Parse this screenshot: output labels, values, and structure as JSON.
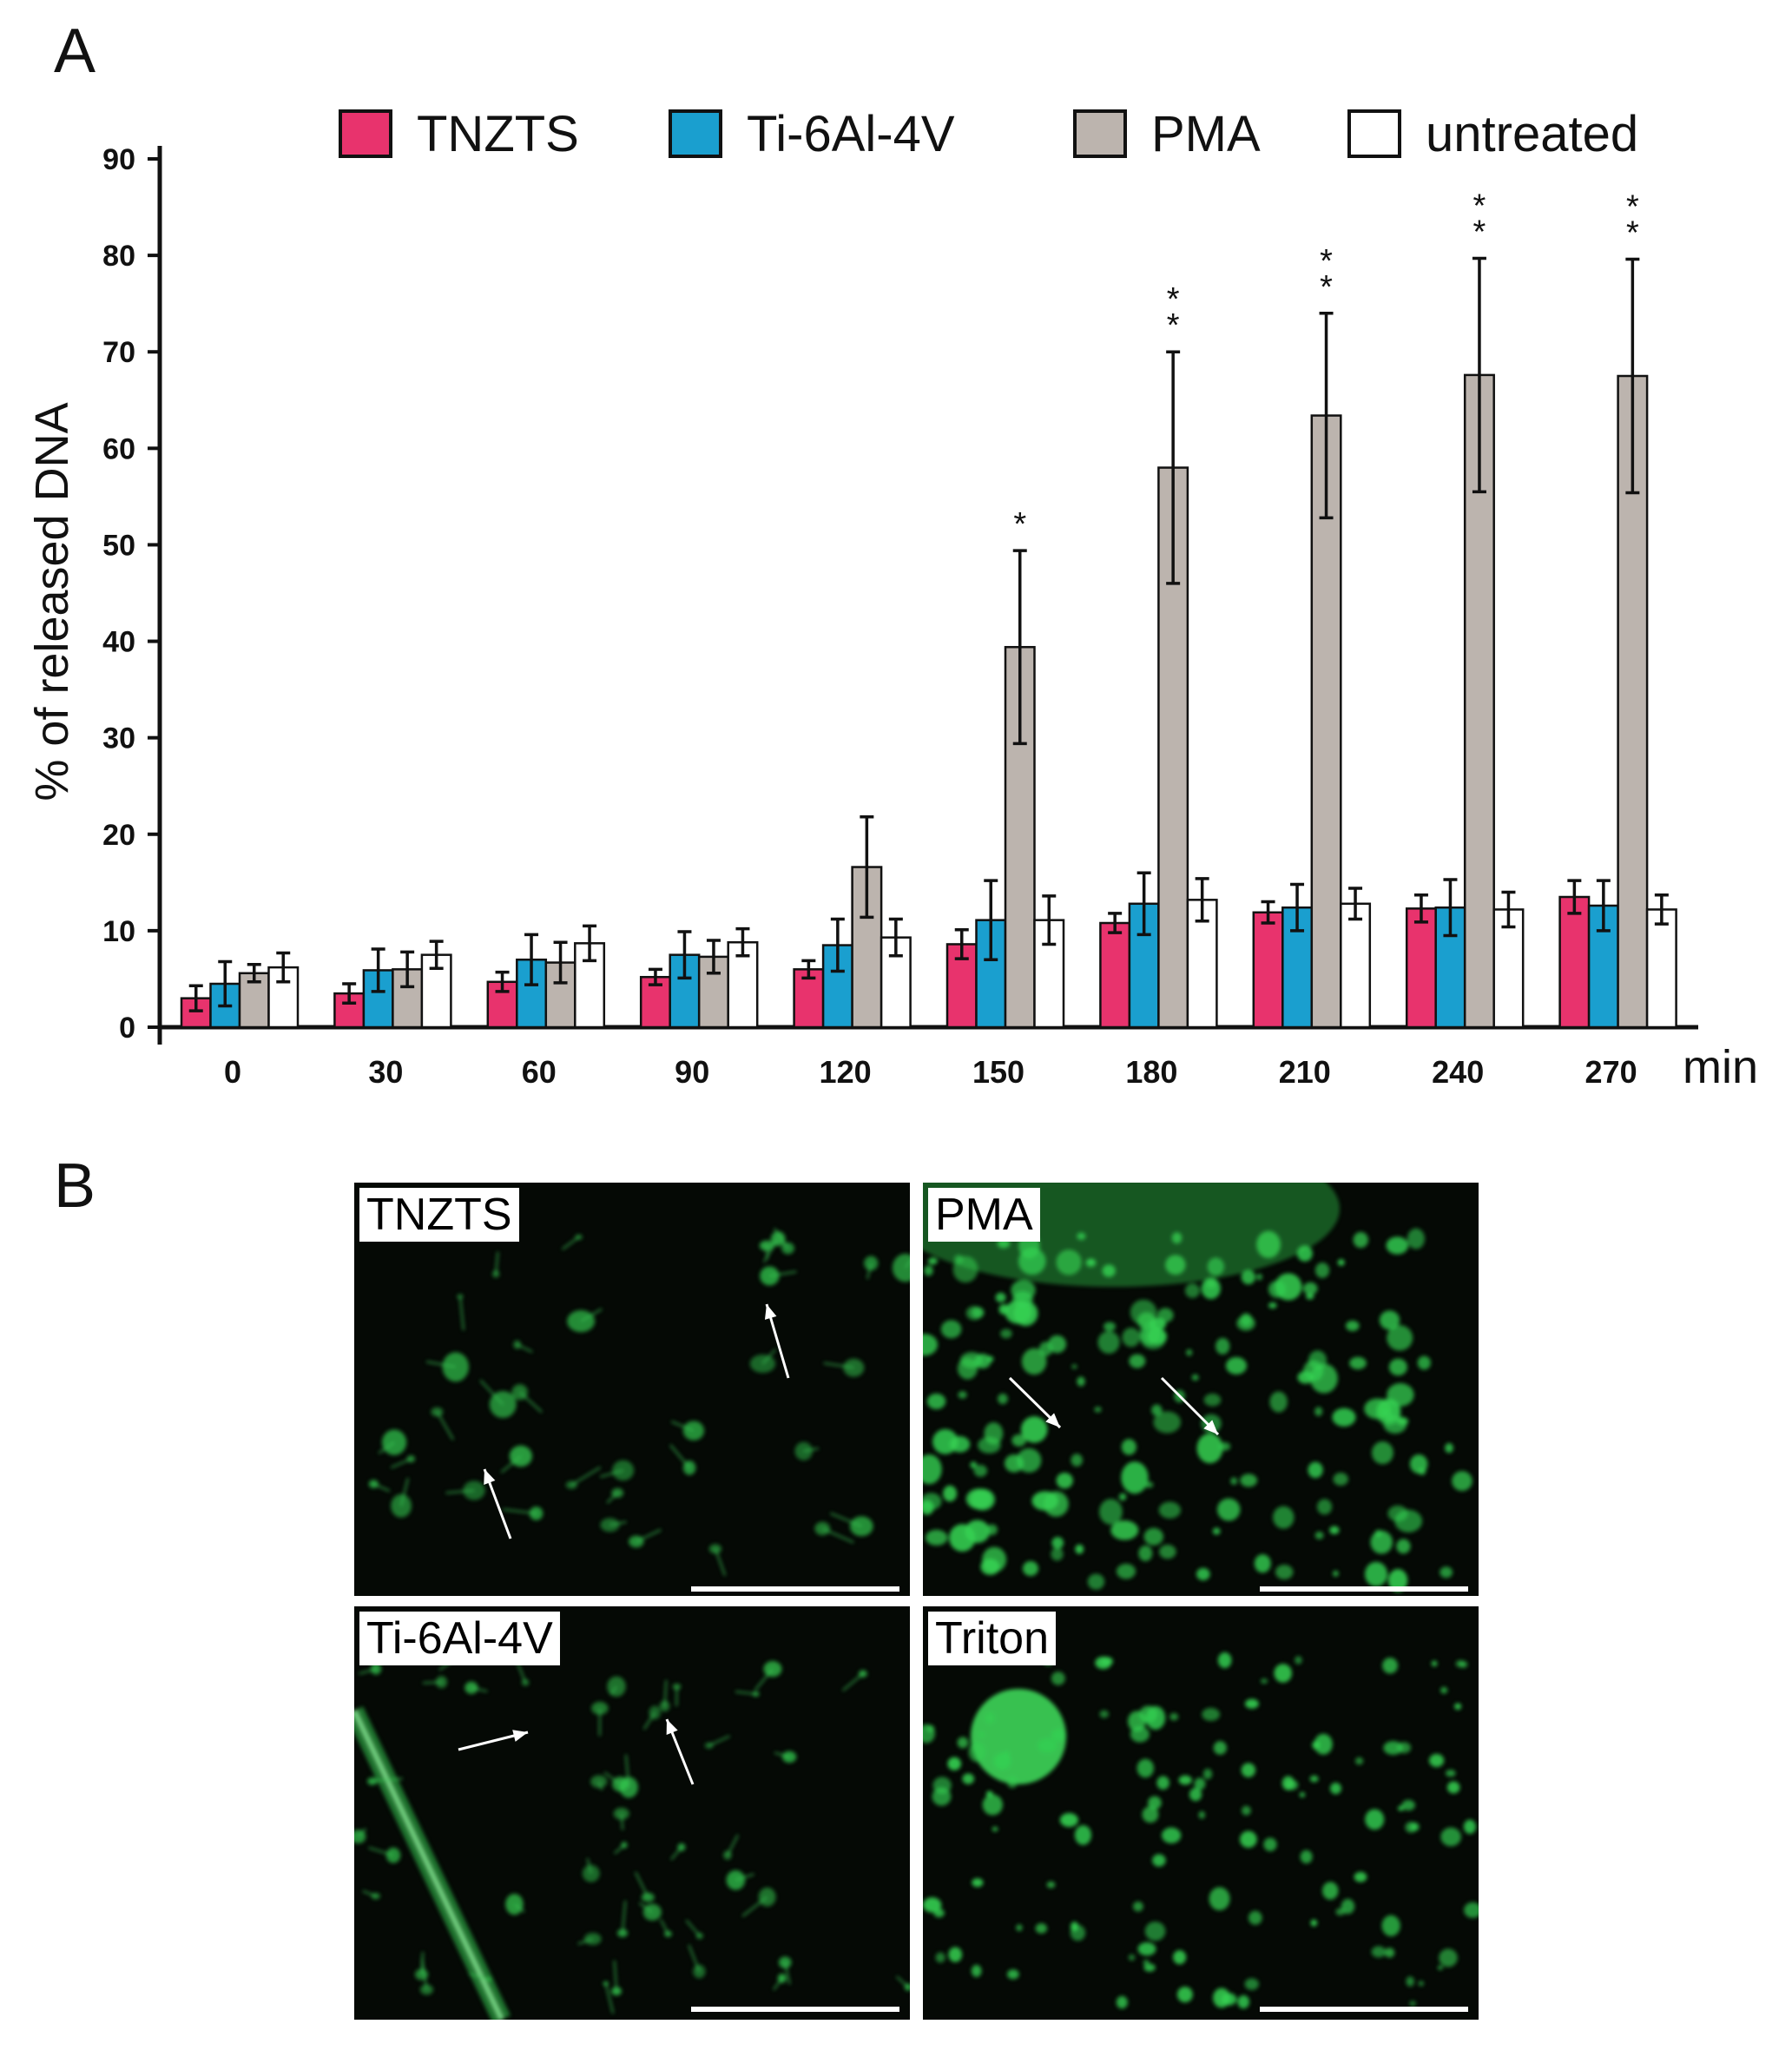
{
  "panels": {
    "a_label": "A",
    "b_label": "B"
  },
  "colors": {
    "TNZTS": "#e8336d",
    "Ti-6Al-4V": "#1a9fcf",
    "PMA": "#bcb4ae",
    "untreated": "#ffffff"
  },
  "chart_data": {
    "type": "bar",
    "title": "",
    "xlabel": "",
    "x_unit": "min",
    "ylabel": "% of released DNA",
    "ylim": [
      0,
      90
    ],
    "yticks": [
      0,
      10,
      20,
      30,
      40,
      50,
      60,
      70,
      80,
      90
    ],
    "legend_position": "top",
    "categories": [
      "0",
      "30",
      "60",
      "90",
      "120",
      "150",
      "180",
      "210",
      "240",
      "270"
    ],
    "series": [
      {
        "name": "TNZTS",
        "values": [
          3.0,
          3.5,
          4.7,
          5.2,
          6.0,
          8.6,
          10.8,
          11.9,
          12.3,
          13.5
        ],
        "errors": [
          1.3,
          1.0,
          1.0,
          0.8,
          0.9,
          1.5,
          1.0,
          1.1,
          1.4,
          1.7
        ]
      },
      {
        "name": "Ti-6Al-4V",
        "values": [
          4.5,
          5.9,
          7.0,
          7.5,
          8.5,
          11.1,
          12.8,
          12.4,
          12.4,
          12.6
        ],
        "errors": [
          2.3,
          2.2,
          2.6,
          2.4,
          2.7,
          4.1,
          3.2,
          2.4,
          2.9,
          2.6
        ]
      },
      {
        "name": "PMA",
        "values": [
          5.6,
          6.0,
          6.7,
          7.3,
          16.6,
          39.4,
          58.0,
          63.4,
          67.6,
          67.5
        ],
        "errors": [
          0.9,
          1.8,
          2.1,
          1.7,
          5.2,
          10.0,
          12.0,
          10.6,
          12.1,
          12.1
        ]
      },
      {
        "name": "untreated",
        "values": [
          6.2,
          7.5,
          8.7,
          8.8,
          9.3,
          11.1,
          13.2,
          12.8,
          12.2,
          12.2
        ],
        "errors": [
          1.5,
          1.4,
          1.8,
          1.4,
          1.9,
          2.5,
          2.2,
          1.6,
          1.8,
          1.5
        ]
      }
    ],
    "significance": [
      "",
      "",
      "",
      "",
      "",
      "*",
      "**",
      "**",
      "**",
      "**"
    ]
  },
  "micrographs": [
    {
      "label": "TNZTS",
      "seed": 11,
      "density": "sparse",
      "arrows": 2
    },
    {
      "label": "PMA",
      "seed": 23,
      "density": "dense",
      "arrows": 2
    },
    {
      "label": "Ti-6Al-4V",
      "seed": 37,
      "density": "filament",
      "arrows": 2
    },
    {
      "label": "Triton",
      "seed": 53,
      "density": "scattered",
      "arrows": 0
    }
  ]
}
